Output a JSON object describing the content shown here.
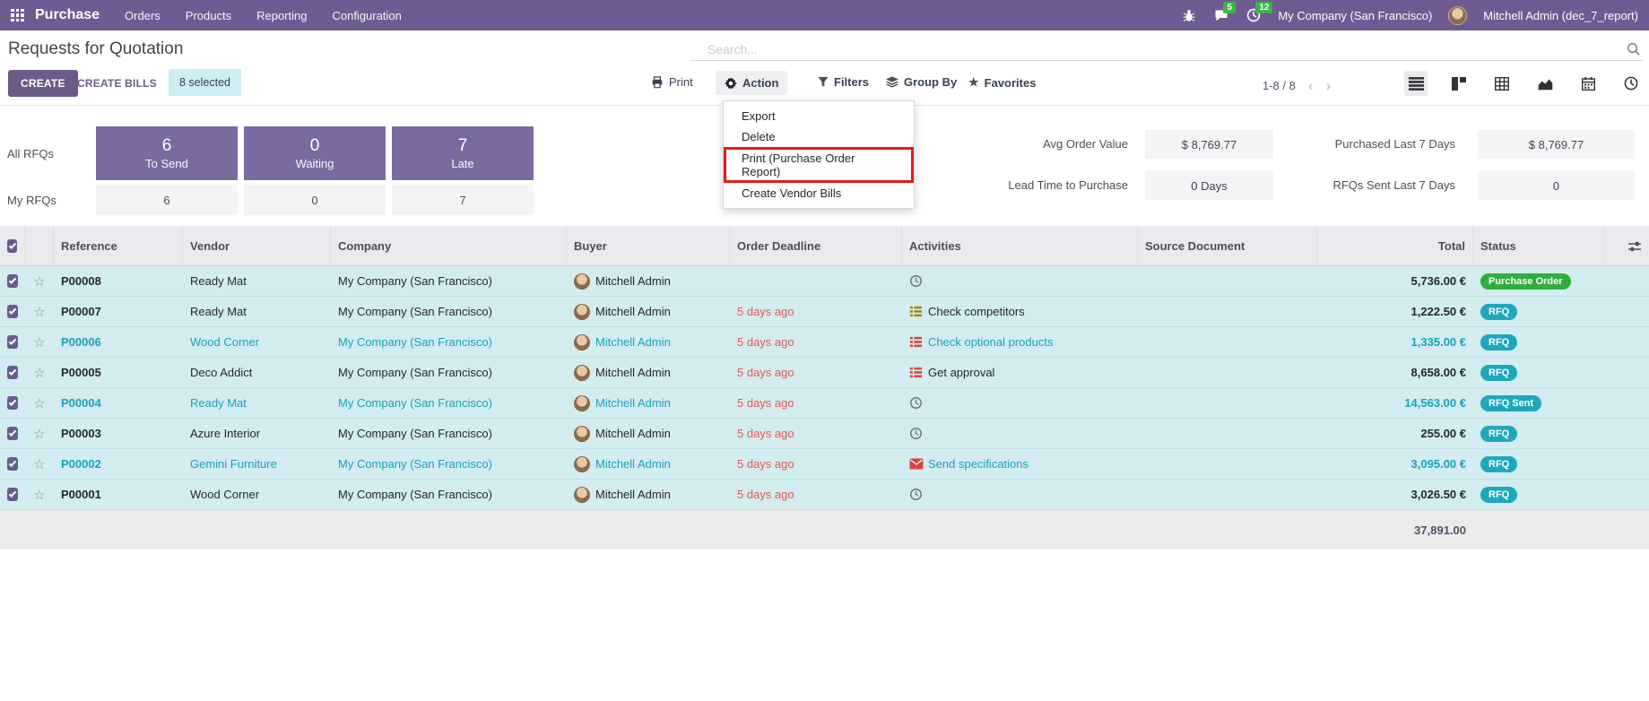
{
  "topbar": {
    "brand": "Purchase",
    "menus": [
      "Orders",
      "Products",
      "Reporting",
      "Configuration"
    ],
    "messages_badge": "5",
    "activities_badge": "12",
    "company": "My Company (San Francisco)",
    "user": "Mitchell Admin (dec_7_report)"
  },
  "page": {
    "title": "Requests for Quotation",
    "search_placeholder": "Search..."
  },
  "buttons": {
    "create": "CREATE",
    "create_bills": "CREATE BILLS",
    "selected_badge": "8 selected",
    "print": "Print",
    "action": "Action",
    "filters": "Filters",
    "group_by": "Group By",
    "favorites": "Favorites"
  },
  "pager": {
    "range": "1-8 / 8"
  },
  "action_menu": {
    "items": [
      {
        "label": "Export",
        "highlighted": false
      },
      {
        "label": "Delete",
        "highlighted": false
      },
      {
        "label": "Print (Purchase Order Report)",
        "highlighted": true
      },
      {
        "label": "Create Vendor Bills",
        "highlighted": false
      }
    ]
  },
  "kpi": {
    "row_labels": [
      "All RFQs",
      "My RFQs"
    ],
    "stats": [
      {
        "value": "6",
        "label": "To Send",
        "my_value": "6"
      },
      {
        "value": "0",
        "label": "Waiting",
        "my_value": "0"
      },
      {
        "value": "7",
        "label": "Late",
        "my_value": "7"
      }
    ],
    "metrics": [
      {
        "label": "Avg Order Value",
        "value": "$ 8,769.77"
      },
      {
        "label": "Lead Time to Purchase",
        "value": "0 Days"
      },
      {
        "label": "Purchased Last 7 Days",
        "value": "$ 8,769.77"
      },
      {
        "label": "RFQs Sent Last 7 Days",
        "value": "0"
      }
    ]
  },
  "table": {
    "headers": [
      "Reference",
      "Vendor",
      "Company",
      "Buyer",
      "Order Deadline",
      "Activities",
      "Source Document",
      "Total",
      "Status"
    ],
    "rows": [
      {
        "reference": "P00008",
        "vendor": "Ready Mat",
        "company": "My Company (San Francisco)",
        "buyer": "Mitchell Admin",
        "deadline": "",
        "activity_icon": "clock",
        "activity": "",
        "source": "",
        "total": "5,736.00 €",
        "status": "Purchase Order",
        "status_color": "green",
        "muted": false,
        "checked": true
      },
      {
        "reference": "P00007",
        "vendor": "Ready Mat",
        "company": "My Company (San Francisco)",
        "buyer": "Mitchell Admin",
        "deadline": "5 days ago",
        "activity_icon": "list-yellow",
        "activity": "Check competitors",
        "source": "",
        "total": "1,222.50 €",
        "status": "RFQ",
        "status_color": "teal",
        "muted": false,
        "checked": true
      },
      {
        "reference": "P00006",
        "vendor": "Wood Corner",
        "company": "My Company (San Francisco)",
        "buyer": "Mitchell Admin",
        "deadline": "5 days ago",
        "activity_icon": "list-red",
        "activity": "Check optional products",
        "source": "",
        "total": "1,335.00 €",
        "status": "RFQ",
        "status_color": "teal",
        "muted": true,
        "checked": true
      },
      {
        "reference": "P00005",
        "vendor": "Deco Addict",
        "company": "My Company (San Francisco)",
        "buyer": "Mitchell Admin",
        "deadline": "5 days ago",
        "activity_icon": "list-red",
        "activity": "Get approval",
        "source": "",
        "total": "8,658.00 €",
        "status": "RFQ",
        "status_color": "teal",
        "muted": false,
        "checked": true
      },
      {
        "reference": "P00004",
        "vendor": "Ready Mat",
        "company": "My Company (San Francisco)",
        "buyer": "Mitchell Admin",
        "deadline": "5 days ago",
        "activity_icon": "clock",
        "activity": "",
        "source": "",
        "total": "14,563.00 €",
        "status": "RFQ Sent",
        "status_color": "teal",
        "muted": true,
        "checked": true
      },
      {
        "reference": "P00003",
        "vendor": "Azure Interior",
        "company": "My Company (San Francisco)",
        "buyer": "Mitchell Admin",
        "deadline": "5 days ago",
        "activity_icon": "clock",
        "activity": "",
        "source": "",
        "total": "255.00 €",
        "status": "RFQ",
        "status_color": "teal",
        "muted": false,
        "checked": true
      },
      {
        "reference": "P00002",
        "vendor": "Gemini Furniture",
        "company": "My Company (San Francisco)",
        "buyer": "Mitchell Admin",
        "deadline": "5 days ago",
        "activity_icon": "envelope",
        "activity": "Send specifications",
        "source": "",
        "total": "3,095.00 €",
        "status": "RFQ",
        "status_color": "teal",
        "muted": true,
        "checked": true
      },
      {
        "reference": "P00001",
        "vendor": "Wood Corner",
        "company": "My Company (San Francisco)",
        "buyer": "Mitchell Admin",
        "deadline": "5 days ago",
        "activity_icon": "clock",
        "activity": "",
        "source": "",
        "total": "3,026.50 €",
        "status": "RFQ",
        "status_color": "teal",
        "muted": false,
        "checked": true
      }
    ],
    "footer_total": "37,891.00"
  },
  "colors": {
    "topbar": "#6d5b92",
    "accent": "#6c5a87",
    "kpi_card": "#7b6aa0",
    "info_teal": "#18a2b8",
    "badge_teal": "#1ea8bb",
    "badge_green": "#2fad3f",
    "danger_red": "#e25757",
    "highlight_box_red": "#e01b1b",
    "row_bg": "#d3ecef"
  }
}
